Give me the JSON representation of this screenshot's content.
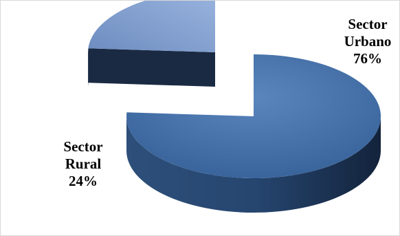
{
  "chart_data": {
    "type": "pie",
    "categories": [
      "Sector Urbano",
      "Sector Rural"
    ],
    "values": [
      76,
      24
    ],
    "unit": "%",
    "style": "3d-exploded",
    "colors": [
      "#4f81bd",
      "#8eaadb"
    ],
    "labels": {
      "urbano": {
        "line1": "Sector",
        "line2": "Urbano",
        "pct": "76%"
      },
      "rural": {
        "line1": "Sector",
        "line2": "Rural",
        "pct": "24%"
      }
    }
  }
}
